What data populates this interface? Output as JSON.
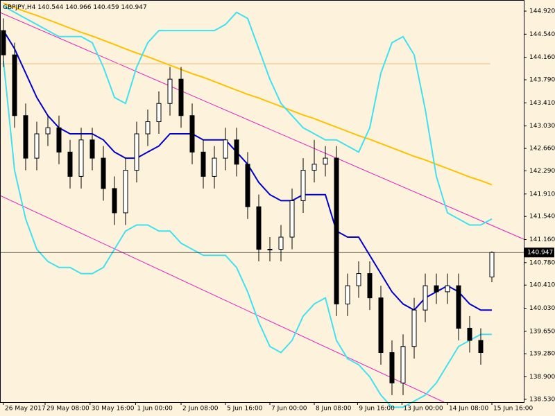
{
  "chart_data": {
    "type": "candlestick",
    "symbol": "GBPJPY,H4",
    "open": [
      144.6,
      144.2,
      143.2,
      142.5,
      142.9,
      143.0,
      142.6,
      142.2,
      142.8,
      142.5,
      142.0,
      141.6,
      142.3,
      142.9,
      143.1,
      143.4,
      143.8,
      143.2,
      142.6,
      142.2,
      142.5,
      142.8,
      142.4,
      141.7,
      141.0,
      141.0,
      141.2,
      141.8,
      142.3,
      142.4,
      142.5,
      140.1,
      140.4,
      140.6,
      140.2,
      139.3,
      138.8,
      139.4,
      140.0,
      140.4,
      140.3,
      140.4,
      139.7,
      139.5,
      140.544
    ],
    "high": [
      144.8,
      144.4,
      143.4,
      143.1,
      143.2,
      143.2,
      142.8,
      143.0,
      143.0,
      142.7,
      142.2,
      142.5,
      143.1,
      143.3,
      143.6,
      144.0,
      144.0,
      143.4,
      142.8,
      142.7,
      143.0,
      143.0,
      142.6,
      141.9,
      141.2,
      141.4,
      142.0,
      142.5,
      142.8,
      142.7,
      142.7,
      140.6,
      140.8,
      140.8,
      140.4,
      139.5,
      139.6,
      140.2,
      140.6,
      140.6,
      140.6,
      140.6,
      139.9,
      139.7,
      140.966
    ],
    "low": [
      144.0,
      143.0,
      142.3,
      142.3,
      142.7,
      142.4,
      142.0,
      142.0,
      142.3,
      141.8,
      141.4,
      141.4,
      142.1,
      142.7,
      142.9,
      143.2,
      143.0,
      142.4,
      142.0,
      142.0,
      142.3,
      142.2,
      141.5,
      140.8,
      140.8,
      140.8,
      141.0,
      141.6,
      142.1,
      142.2,
      139.9,
      139.9,
      140.2,
      140.0,
      139.1,
      138.6,
      138.6,
      139.2,
      139.8,
      140.1,
      140.1,
      139.5,
      139.3,
      139.1,
      140.459
    ],
    "close": [
      144.2,
      143.2,
      142.5,
      142.9,
      143.0,
      142.6,
      142.2,
      142.8,
      142.5,
      142.0,
      141.6,
      142.3,
      142.9,
      143.1,
      143.4,
      143.8,
      143.2,
      142.6,
      142.2,
      142.5,
      142.8,
      142.4,
      141.7,
      141.0,
      141.0,
      141.2,
      141.8,
      142.3,
      142.4,
      142.5,
      140.1,
      140.4,
      140.6,
      140.2,
      139.3,
      138.8,
      139.4,
      140.0,
      140.4,
      140.3,
      140.4,
      139.7,
      139.5,
      139.3,
      140.947
    ],
    "last_price": 140.947,
    "lines": [
      {
        "color": "#ffc000",
        "values": [
          145.05,
          144.98,
          144.91,
          144.85,
          144.78,
          144.71,
          144.64,
          144.57,
          144.51,
          144.44,
          144.37,
          144.3,
          144.23,
          144.17,
          144.1,
          144.03,
          143.96,
          143.89,
          143.83,
          143.76,
          143.69,
          143.62,
          143.55,
          143.49,
          143.42,
          143.35,
          143.28,
          143.21,
          143.15,
          143.08,
          143.01,
          142.94,
          142.87,
          142.81,
          142.74,
          142.67,
          142.6,
          142.53,
          142.47,
          142.4,
          142.33,
          142.26,
          142.19,
          142.13,
          142.06
        ]
      },
      {
        "color": "#40e0f0",
        "values": [
          145.0,
          144.9,
          144.8,
          144.7,
          144.6,
          144.5,
          144.5,
          144.5,
          144.4,
          144.0,
          143.5,
          143.4,
          144.0,
          144.4,
          144.6,
          144.6,
          144.6,
          144.6,
          144.6,
          144.6,
          144.7,
          144.9,
          144.8,
          144.3,
          143.8,
          143.4,
          143.2,
          143.0,
          142.9,
          142.8,
          142.8,
          142.7,
          142.6,
          143.0,
          143.9,
          144.4,
          144.5,
          144.2,
          143.3,
          142.2,
          141.6,
          141.5,
          141.4,
          141.4,
          141.5
        ]
      },
      {
        "color": "#40e0f0",
        "values": [
          144.1,
          142.3,
          141.5,
          141.0,
          140.8,
          140.7,
          140.7,
          140.6,
          140.6,
          140.7,
          141.0,
          141.3,
          141.4,
          141.4,
          141.3,
          141.3,
          141.1,
          141.0,
          140.9,
          140.9,
          140.9,
          140.7,
          140.3,
          139.8,
          139.4,
          139.3,
          139.5,
          139.9,
          140.1,
          140.2,
          139.5,
          139.2,
          139.1,
          138.9,
          138.6,
          138.4,
          138.4,
          138.5,
          138.6,
          138.8,
          139.1,
          139.4,
          139.5,
          139.6,
          139.6
        ]
      },
      {
        "color": "#0000cc",
        "values": [
          144.6,
          144.3,
          143.9,
          143.5,
          143.2,
          143.0,
          142.9,
          142.9,
          142.9,
          142.8,
          142.6,
          142.5,
          142.5,
          142.6,
          142.7,
          142.9,
          142.9,
          142.9,
          142.8,
          142.8,
          142.8,
          142.6,
          142.4,
          142.1,
          141.9,
          141.8,
          141.8,
          141.9,
          141.9,
          141.9,
          141.3,
          141.2,
          141.2,
          140.9,
          140.6,
          140.3,
          140.1,
          140.0,
          140.2,
          140.3,
          140.4,
          140.3,
          140.1,
          140.0,
          140.0
        ]
      }
    ],
    "xlim": [
      -0.3125,
      46.875
    ],
    "xticks": [
      {
        "value": 0,
        "label": "26 May 2017"
      },
      {
        "value": 3.75,
        "label": "29 May 08:00"
      },
      {
        "value": 7.8,
        "label": "30 May 16:00"
      },
      {
        "value": 11.9,
        "label": "1 Jun 00:00"
      },
      {
        "value": 16,
        "label": "2 Jun 08:00"
      },
      {
        "value": 20,
        "label": "5 Jun 16:00"
      },
      {
        "value": 24,
        "label": "7 Jun 00:00"
      },
      {
        "value": 28,
        "label": "8 Jun 08:00"
      },
      {
        "value": 31.9,
        "label": "9 Jun 16:00"
      },
      {
        "value": 35.9,
        "label": "13 Jun 00:00"
      },
      {
        "value": 40,
        "label": "14 Jun 08:00"
      },
      {
        "value": 44,
        "label": "15 Jun 16:00"
      }
    ],
    "ylim": [
      138.484,
      145.103
    ],
    "yticks": [
      {
        "value": 144.92,
        "label": "144.920"
      },
      {
        "value": 144.54,
        "label": "144.540"
      },
      {
        "value": 144.16,
        "label": "144.160"
      },
      {
        "value": 143.79,
        "label": "143.790"
      },
      {
        "value": 143.41,
        "label": "143.410"
      },
      {
        "value": 143.03,
        "label": "143.030"
      },
      {
        "value": 142.66,
        "label": "142.660"
      },
      {
        "value": 142.29,
        "label": "142.290"
      },
      {
        "value": 141.91,
        "label": "141.910"
      },
      {
        "value": 141.54,
        "label": "141.540"
      },
      {
        "value": 141.16,
        "label": "141.160"
      },
      {
        "value": 140.78,
        "label": "140.780"
      },
      {
        "value": 140.41,
        "label": "140.410"
      },
      {
        "value": 140.03,
        "label": "140.030"
      },
      {
        "value": 139.65,
        "label": "139.650"
      },
      {
        "value": 139.28,
        "label": "139.280"
      },
      {
        "value": 138.9,
        "label": "138.900"
      },
      {
        "value": 138.53,
        "label": "138.530"
      }
    ],
    "bull_color": "#ffffff",
    "bear_color": "#000000"
  }
}
